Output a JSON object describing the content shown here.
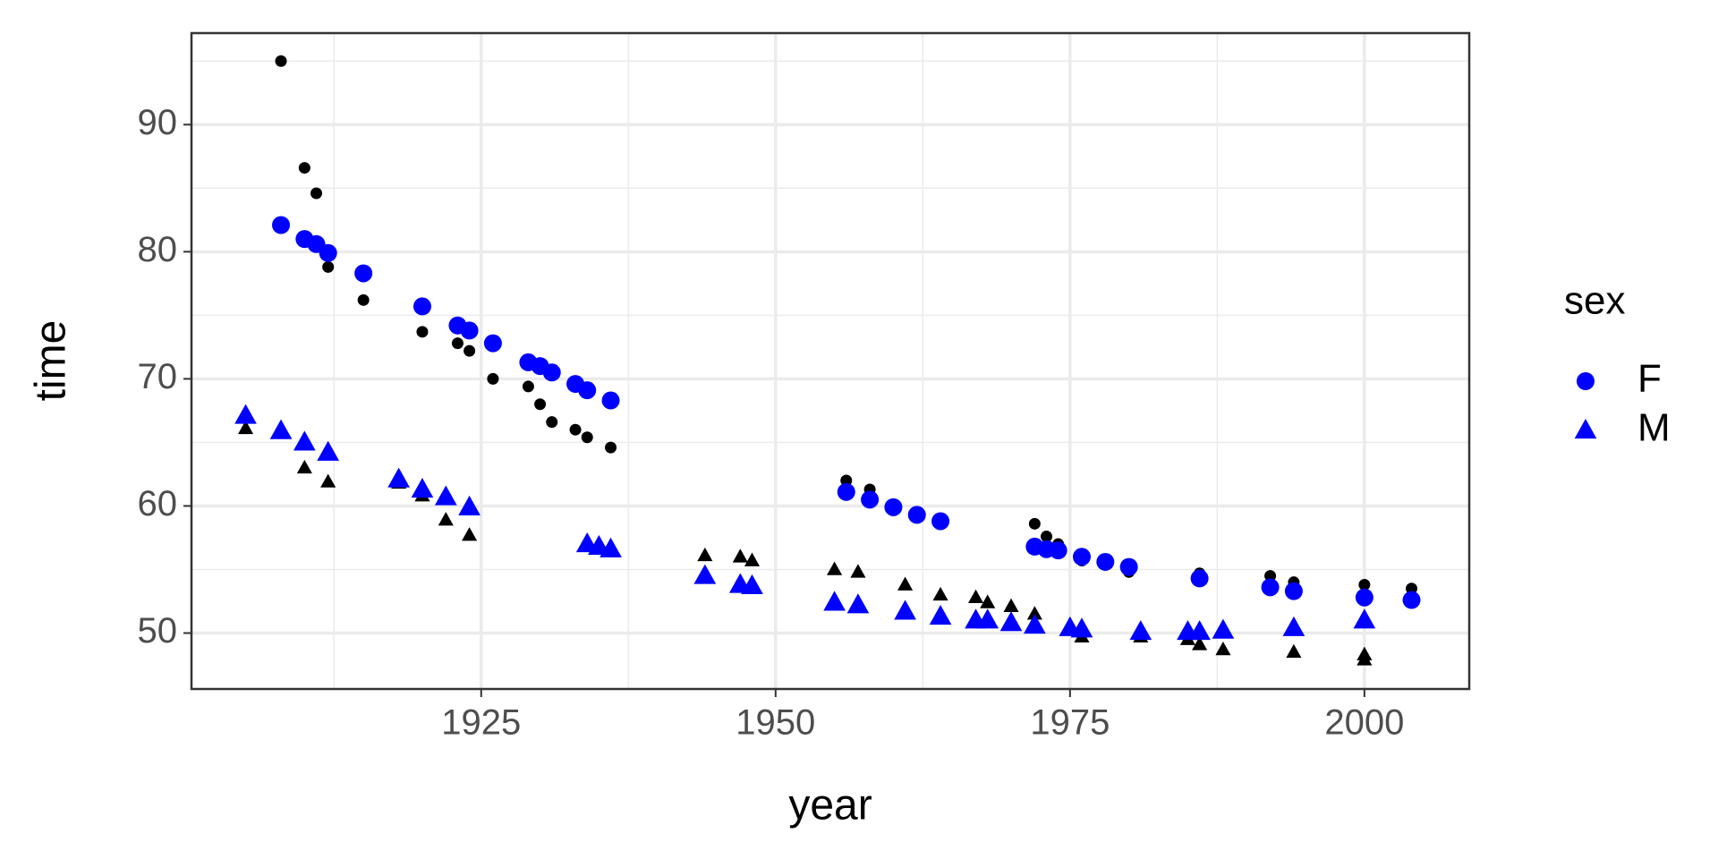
{
  "chart_data": {
    "type": "scatter",
    "x_label": "year",
    "y_label": "time",
    "legend_title": "sex",
    "xlim": [
      1900.4,
      2008.9
    ],
    "ylim": [
      45.6,
      97.2
    ],
    "xticks": [
      1925,
      1950,
      1975,
      2000
    ],
    "yticks": [
      50,
      60,
      70,
      80,
      90
    ],
    "x_minor_grid": [
      1912.5,
      1937.5,
      1962.5,
      1987.5
    ],
    "y_minor_grid": [
      55,
      65,
      75,
      85,
      95
    ],
    "grid": true,
    "series": [
      {
        "color": "#000000",
        "marker": "circle",
        "x": [
          1908,
          1910,
          1911,
          1912,
          1915,
          1920,
          1923,
          1924,
          1926,
          1929,
          1930,
          1931,
          1933,
          1934,
          1936,
          1956,
          1958,
          1972,
          1973,
          1974,
          1976,
          1980,
          1986,
          1992,
          1994,
          2000,
          2004
        ],
        "y": [
          95.0,
          86.6,
          84.6,
          78.8,
          76.2,
          73.7,
          72.8,
          72.2,
          70.0,
          69.4,
          68.0,
          66.6,
          66.0,
          65.4,
          64.6,
          62.0,
          61.3,
          58.6,
          57.6,
          57.0,
          55.7,
          54.8,
          54.7,
          54.5,
          54.0,
          53.8,
          53.5
        ]
      },
      {
        "color": "#000000",
        "marker": "triangle",
        "x": [
          1905,
          1910,
          1912,
          1918,
          1920,
          1922,
          1924,
          1944,
          1947,
          1948,
          1955,
          1957,
          1961,
          1964,
          1967,
          1968,
          1970,
          1972,
          1976,
          1981,
          1985,
          1986,
          1988,
          1994,
          2000,
          2000
        ],
        "y": [
          66.1,
          63.0,
          61.9,
          61.8,
          60.8,
          58.9,
          57.7,
          56.1,
          56.0,
          55.7,
          55.0,
          54.8,
          53.8,
          53.0,
          52.8,
          52.4,
          52.1,
          51.5,
          49.7,
          49.7,
          49.5,
          49.1,
          48.7,
          48.5,
          48.3,
          47.9
        ]
      },
      {
        "name": "F",
        "color": "#0000ff",
        "marker": "circle",
        "x": [
          1908,
          1910,
          1911,
          1912,
          1915,
          1920,
          1923,
          1924,
          1926,
          1929,
          1930,
          1931,
          1933,
          1934,
          1936,
          1956,
          1958,
          1960,
          1962,
          1964,
          1972,
          1973,
          1974,
          1976,
          1978,
          1980,
          1986,
          1992,
          1994,
          2000,
          2004
        ],
        "y": [
          82.1,
          81.0,
          80.6,
          79.9,
          78.3,
          75.7,
          74.2,
          73.8,
          72.8,
          71.3,
          71.0,
          70.5,
          69.6,
          69.1,
          68.3,
          61.1,
          60.5,
          59.9,
          59.3,
          58.8,
          56.8,
          56.6,
          56.5,
          56.0,
          55.6,
          55.2,
          54.3,
          53.6,
          53.3,
          52.8,
          52.6
        ]
      },
      {
        "name": "M",
        "color": "#0000ff",
        "marker": "triangle",
        "x": [
          1905,
          1908,
          1910,
          1912,
          1918,
          1920,
          1922,
          1924,
          1934,
          1935,
          1936,
          1944,
          1947,
          1948,
          1955,
          1957,
          1961,
          1964,
          1967,
          1968,
          1970,
          1972,
          1975,
          1976,
          1981,
          1985,
          1986,
          1988,
          1994,
          2000
        ],
        "y": [
          67.1,
          65.9,
          65.0,
          64.2,
          62.1,
          61.3,
          60.7,
          59.9,
          57.0,
          56.8,
          56.6,
          54.5,
          53.8,
          53.7,
          52.4,
          52.2,
          51.7,
          51.3,
          51.0,
          51.0,
          50.8,
          50.6,
          50.4,
          50.3,
          50.1,
          50.1,
          50.1,
          50.2,
          50.4,
          51.0
        ]
      }
    ]
  }
}
